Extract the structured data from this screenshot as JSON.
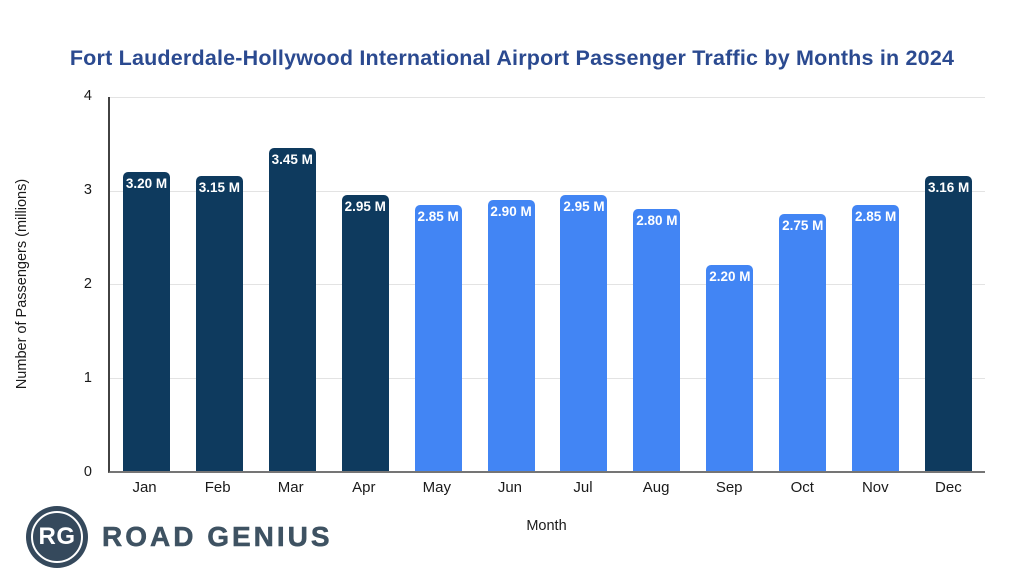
{
  "title": "Fort Lauderdale-Hollywood International Airport Passenger Traffic by Months in 2024",
  "chart_data": {
    "type": "bar",
    "title": "Fort Lauderdale-Hollywood International Airport Passenger Traffic by Months in 2024",
    "categories": [
      "Jan",
      "Feb",
      "Mar",
      "Apr",
      "May",
      "Jun",
      "Jul",
      "Aug",
      "Sep",
      "Oct",
      "Nov",
      "Dec"
    ],
    "values": [
      3.2,
      3.15,
      3.45,
      2.95,
      2.85,
      2.9,
      2.95,
      2.8,
      2.2,
      2.75,
      2.85,
      3.16
    ],
    "labels": [
      "3.20 M",
      "3.15 M",
      "3.45 M",
      "2.95 M",
      "2.85 M",
      "2.90 M",
      "2.95 M",
      "2.80 M",
      "2.20 M",
      "2.75 M",
      "2.85 M",
      "3.16 M"
    ],
    "bar_colors": [
      "dark",
      "dark",
      "dark",
      "dark",
      "light",
      "light",
      "light",
      "light",
      "light",
      "light",
      "light",
      "dark"
    ],
    "colors": {
      "dark": "#0e3a5e",
      "light": "#4285f4"
    },
    "xlabel": "Month",
    "ylabel": "Number of Passengers (millions)",
    "ylim": [
      0,
      4
    ],
    "yticks": [
      0,
      1,
      2,
      3,
      4
    ],
    "grid": true,
    "legend": "none",
    "label_position": "inside-top",
    "label_color": "#ffffff",
    "title_color": "#2b4a90"
  },
  "branding": {
    "logo_initials": "RG",
    "logo_text": "ROAD GENIUS",
    "logo_color": "#35495c"
  }
}
